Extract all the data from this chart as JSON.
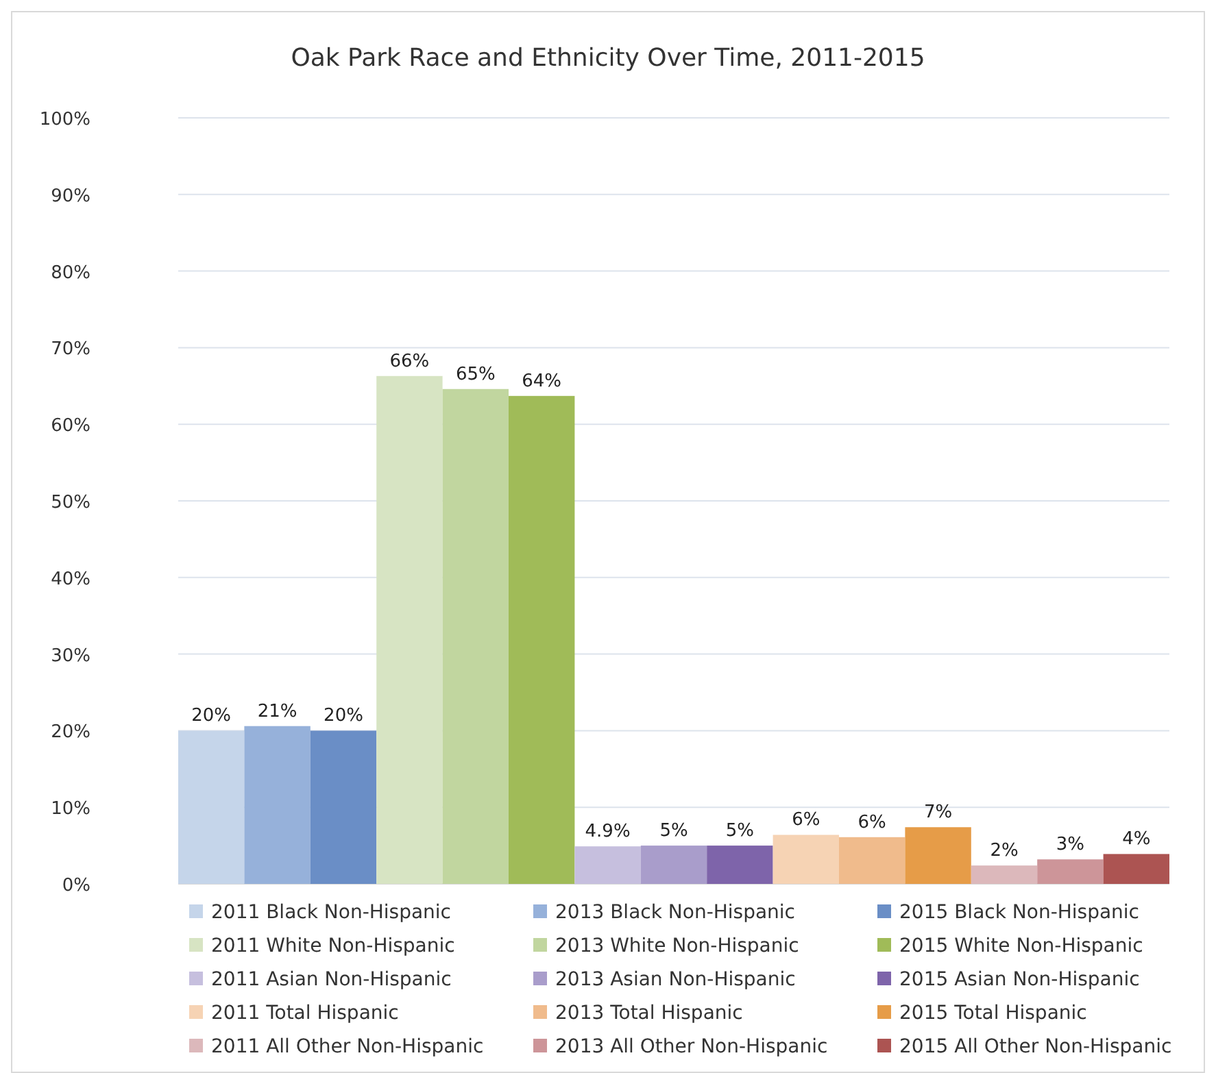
{
  "chart_data": {
    "type": "bar",
    "title": "Oak Park Race and Ethnicity Over Time, 2011-2015",
    "categories": [
      null
    ],
    "ylim": [
      0,
      100
    ],
    "yticks": [
      {
        "value": 0,
        "label": "0%"
      },
      {
        "value": 10,
        "label": "10%"
      },
      {
        "value": 20,
        "label": "20%"
      },
      {
        "value": 30,
        "label": "30%"
      },
      {
        "value": 40,
        "label": "40%"
      },
      {
        "value": 50,
        "label": "50%"
      },
      {
        "value": 60,
        "label": "60%"
      },
      {
        "value": 70,
        "label": "70%"
      },
      {
        "value": 80,
        "label": "80%"
      },
      {
        "value": 90,
        "label": "90%"
      },
      {
        "value": 100,
        "label": "100%"
      }
    ],
    "grid": "y",
    "legend": "bottom",
    "series": [
      {
        "name": "2011 Black Non-Hispanic",
        "color": "#c5d5ea",
        "values": [
          20.0
        ],
        "value_labels": [
          "20%"
        ]
      },
      {
        "name": "2013 Black Non-Hispanic",
        "color": "#96b1da",
        "values": [
          20.6
        ],
        "value_labels": [
          "21%"
        ]
      },
      {
        "name": "2015 Black Non-Hispanic",
        "color": "#6a8ec6",
        "values": [
          20.0
        ],
        "value_labels": [
          "20%"
        ]
      },
      {
        "name": "2011 White Non-Hispanic",
        "color": "#d7e4c3",
        "values": [
          66.3
        ],
        "value_labels": [
          "66%"
        ]
      },
      {
        "name": "2013 White Non-Hispanic",
        "color": "#c1d69f",
        "values": [
          64.6
        ],
        "value_labels": [
          "65%"
        ]
      },
      {
        "name": "2015 White Non-Hispanic",
        "color": "#a0bb58",
        "values": [
          63.7
        ],
        "value_labels": [
          "64%"
        ]
      },
      {
        "name": "2011 Asian Non-Hispanic",
        "color": "#c6bfde",
        "values": [
          4.9
        ],
        "value_labels": [
          "4.9%"
        ]
      },
      {
        "name": "2013 Asian Non-Hispanic",
        "color": "#a99dcb",
        "values": [
          5.0
        ],
        "value_labels": [
          "5%"
        ]
      },
      {
        "name": "2015 Asian Non-Hispanic",
        "color": "#7e64aa",
        "values": [
          5.0
        ],
        "value_labels": [
          "5%"
        ]
      },
      {
        "name": "2011 Total Hispanic",
        "color": "#f6d3b4",
        "values": [
          6.4
        ],
        "value_labels": [
          "6%"
        ]
      },
      {
        "name": "2013 Total Hispanic",
        "color": "#f0bb8c",
        "values": [
          6.1
        ],
        "value_labels": [
          "6%"
        ]
      },
      {
        "name": "2015 Total Hispanic",
        "color": "#e69c48",
        "values": [
          7.4
        ],
        "value_labels": [
          "7%"
        ]
      },
      {
        "name": "2011 All Other Non-Hispanic",
        "color": "#dcb8bb",
        "values": [
          2.4
        ],
        "value_labels": [
          "2%"
        ]
      },
      {
        "name": "2013 All Other Non-Hispanic",
        "color": "#cd9599",
        "values": [
          3.2
        ],
        "value_labels": [
          "3%"
        ]
      },
      {
        "name": "2015 All Other Non-Hispanic",
        "color": "#ac5452",
        "values": [
          3.9
        ],
        "value_labels": [
          "4%"
        ]
      }
    ]
  }
}
